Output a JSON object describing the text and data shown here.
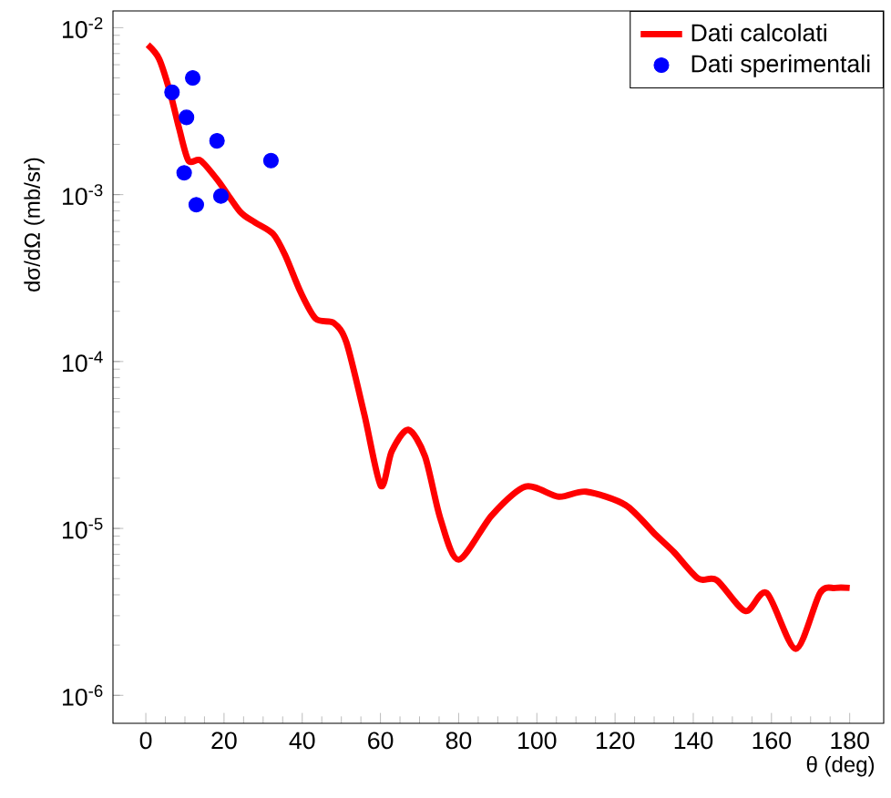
{
  "chart_data": {
    "type": "scatter",
    "xlabel": "θ (deg)",
    "ylabel": "dσ/dΩ (mb/sr)",
    "log": "y",
    "legend": "top right",
    "grid": false,
    "xlim": [
      -8.4,
      188.7
    ],
    "ylim": [
      6.8e-07,
      0.0126
    ],
    "xticks": [
      0,
      20,
      40,
      60,
      80,
      100,
      120,
      140,
      160,
      180
    ],
    "yticks": [
      {
        "value": 1e-06,
        "label": "10$^{-6}$"
      },
      {
        "value": 1e-05,
        "label": "10$^{-5}$"
      },
      {
        "value": 0.0001,
        "label": "10$^{-4}$"
      },
      {
        "value": 0.001,
        "label": "10$^{-3}$"
      },
      {
        "value": 0.01,
        "label": "10$^{-2}$"
      }
    ],
    "series": [
      {
        "name": "Dati calcolati",
        "type": "line",
        "color": "#ff0000",
        "marker": "none",
        "x": [
          0.5,
          3.4,
          6.2,
          8.5,
          10.9,
          14,
          18.6,
          24.1,
          28,
          32.6,
          35.7,
          39.6,
          43.5,
          48.1,
          51.3,
          55.9,
          60.1,
          62.9,
          67.1,
          71.4,
          75.3,
          80,
          88.5,
          97.1,
          105.6,
          112.6,
          122.7,
          130.5,
          135.1,
          141.3,
          146,
          153.3,
          158.8,
          166.2,
          172.4,
          176.3,
          180
        ],
        "values": [
          0.0079,
          0.0065,
          0.0041,
          0.0025,
          0.0016,
          0.0016,
          0.0012,
          0.00079,
          0.00068,
          0.00058,
          0.00043,
          0.00026,
          0.00018,
          0.00017,
          0.00013,
          4.8e-05,
          1.8e-05,
          2.9e-05,
          3.9e-05,
          2.7e-05,
          1.15e-05,
          6.5e-06,
          1.2e-05,
          1.78e-05,
          1.55e-05,
          1.66e-05,
          1.38e-05,
          9.1e-06,
          7.2e-06,
          5e-06,
          4.9e-06,
          3.2e-06,
          4.1e-06,
          1.9e-06,
          4.1e-06,
          4.4e-06,
          4.4e-06
        ]
      },
      {
        "name": "Dati sperimentali",
        "type": "scatter",
        "color": "#0000ff",
        "marker": "circle",
        "x": [
          6.7,
          9.8,
          10.4,
          12,
          12.9,
          18.2,
          19.2,
          32
        ],
        "values": [
          0.0041,
          0.00135,
          0.0029,
          0.005,
          0.00087,
          0.0021,
          0.00098,
          0.0016
        ]
      }
    ]
  }
}
